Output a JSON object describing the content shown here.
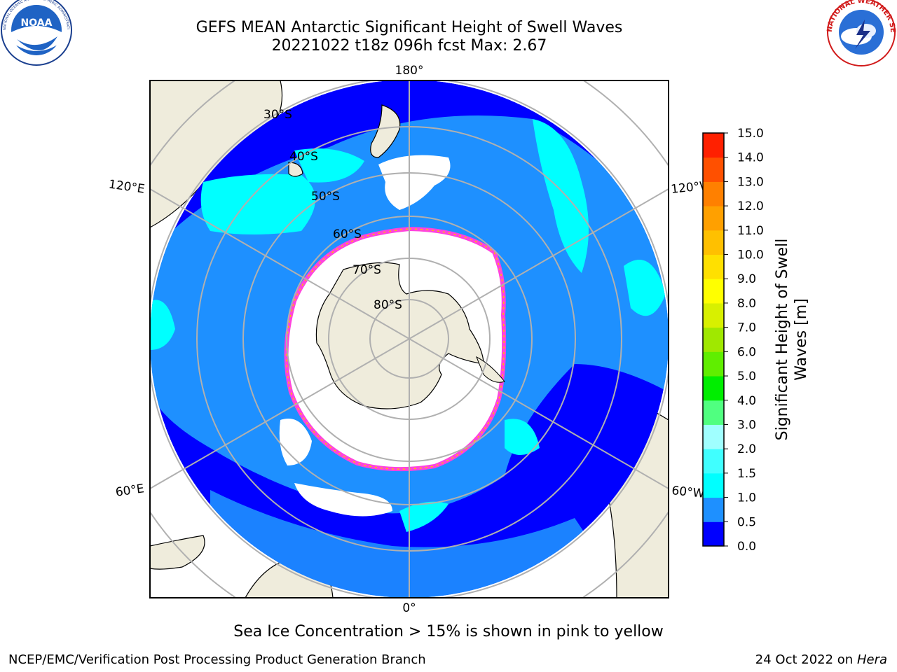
{
  "header": {
    "title_line1": "GEFS MEAN Antarctic Significant Height of Swell Waves",
    "title_line2": "20221022 t18z 096h fcst   Max: 2.67"
  },
  "logos": {
    "left": {
      "name": "noaa-logo",
      "text": "NOAA",
      "ring_text": "NATIONAL OCEANIC AND ATMOSPHERIC ADMINISTRATION · U.S. DEPARTMENT OF COMMERCE"
    },
    "right": {
      "name": "nws-logo",
      "ring_text": "NATIONAL WEATHER SERVICE"
    }
  },
  "map": {
    "projection": "south-polar-stereographic",
    "longitude_labels": {
      "top": "180°",
      "bottom": "0°",
      "left_upper": "120°E",
      "left_lower": "60°E",
      "right_upper": "120°W",
      "right_lower": "60°W"
    },
    "latitude_labels": [
      "30°S",
      "40°S",
      "50°S",
      "60°S",
      "70°S",
      "80°S"
    ],
    "colors": {
      "land": "#efecdc",
      "ocean_low": "#0000ff",
      "ocean_mid": "#1e90ff",
      "ocean_high": "#00ffff",
      "ice": "#ffffff",
      "ice_edge": "#ff44dd",
      "grid": "#b0b0b0"
    }
  },
  "colorbar": {
    "label_line1": "Significant Height of Swell",
    "label_line2": "Waves [m]",
    "ticks": [
      "0.0",
      "0.5",
      "1.0",
      "1.5",
      "2.0",
      "3.0",
      "4.0",
      "5.0",
      "6.0",
      "7.0",
      "8.0",
      "9.0",
      "10.0",
      "11.0",
      "12.0",
      "13.0",
      "14.0",
      "15.0"
    ],
    "colors": [
      "#0000ff",
      "#1e90ff",
      "#00ffff",
      "#40ffff",
      "#a0ffff",
      "#50ff80",
      "#00ee00",
      "#60ee00",
      "#a0e800",
      "#d8f000",
      "#ffff00",
      "#ffe000",
      "#ffc000",
      "#ffa000",
      "#ff8000",
      "#ff5000",
      "#ff2000"
    ]
  },
  "footer": {
    "note": "Sea Ice Concentration > 15% is shown in pink to yellow",
    "credit": "NCEP/EMC/Verification Post Processing Product Generation Branch",
    "date": "24 Oct 2022 on ",
    "host": "Hera"
  }
}
